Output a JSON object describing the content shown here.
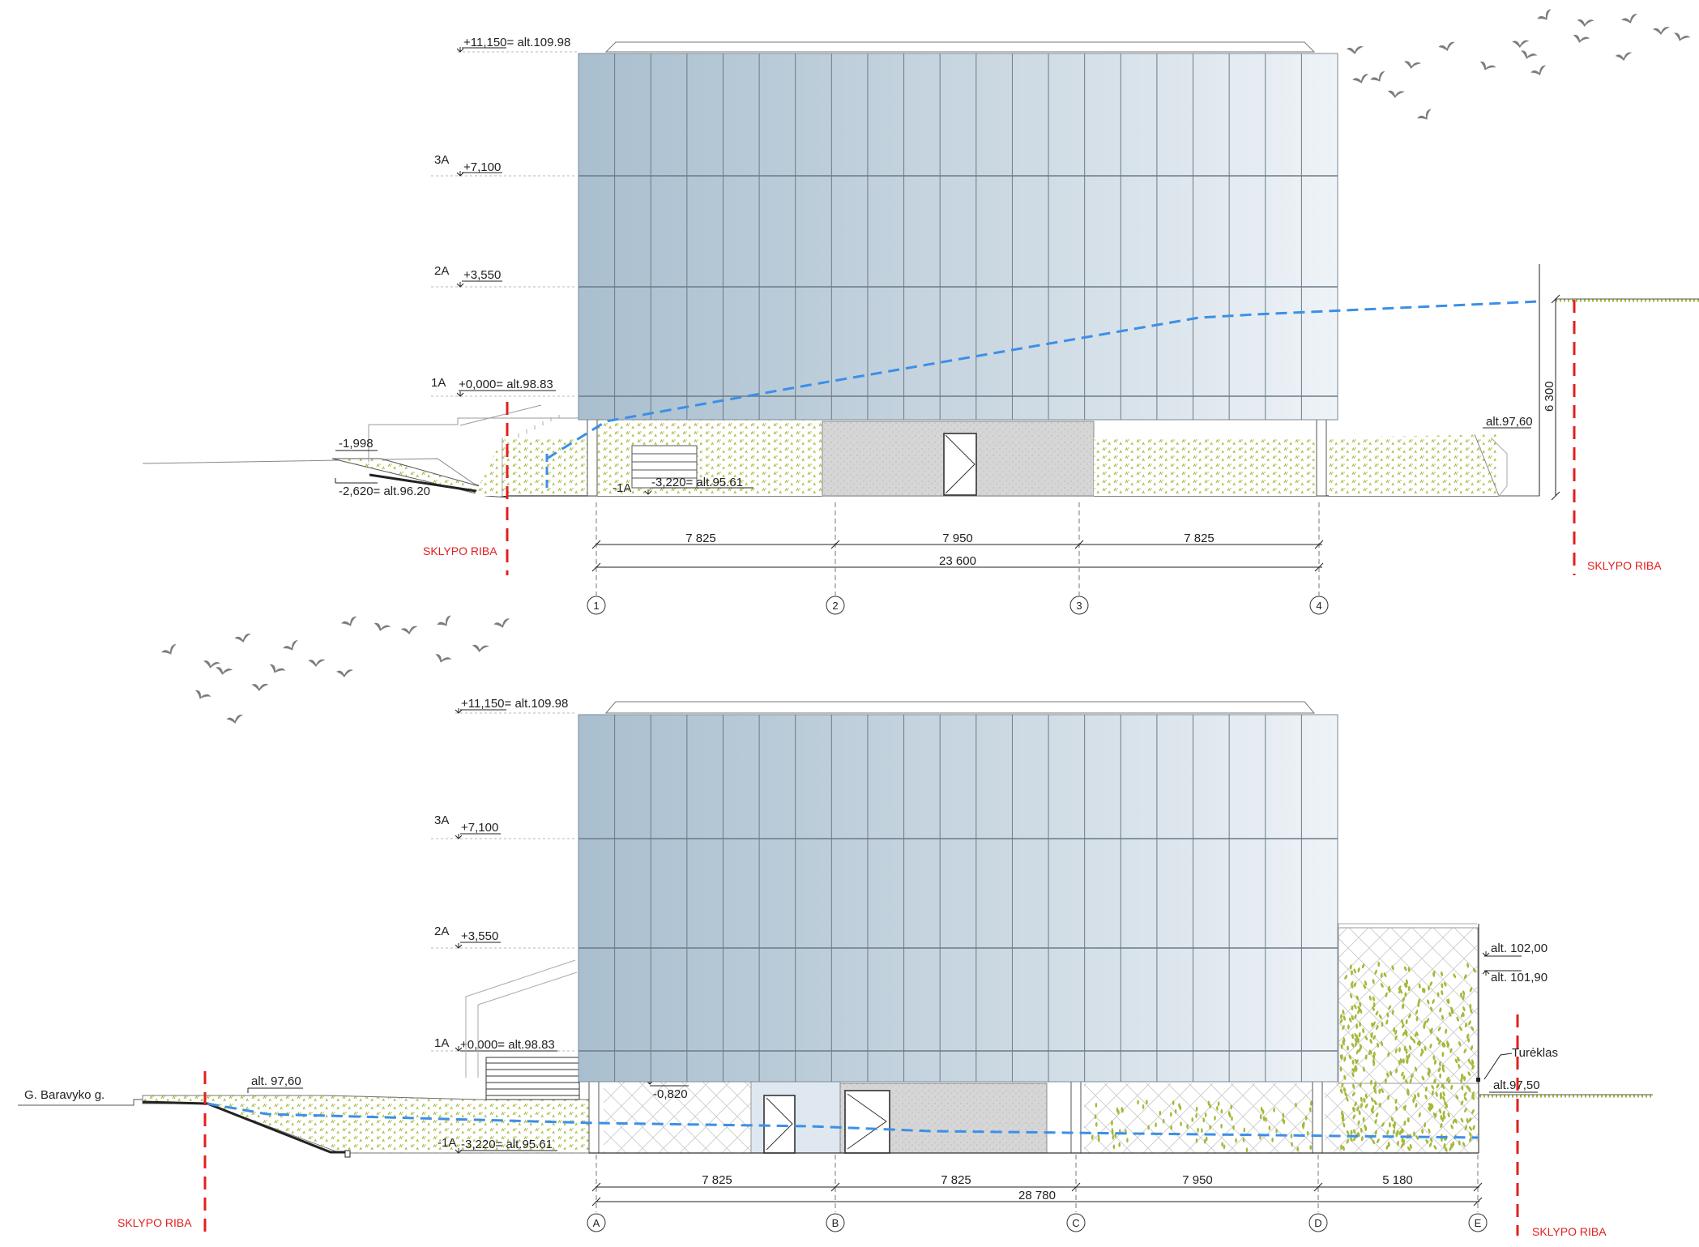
{
  "top": {
    "levels": [
      {
        "tag": "",
        "text": "+11,150= alt.109.98"
      },
      {
        "tag": "3A",
        "text": "+7,100"
      },
      {
        "tag": "2A",
        "text": "+3,550"
      },
      {
        "tag": "1A",
        "text": "+0,000= alt.98.83"
      }
    ],
    "ground_marks": {
      "m1998": "-1,998",
      "m2620": "-2,620= alt.96.20",
      "basement_tag": "-1A",
      "basement": "-3,220= alt.95.61",
      "right_alt": "alt.97,60",
      "height_dim": "6 300"
    },
    "bays": [
      "7 825",
      "7 950",
      "7 825"
    ],
    "total": "23 600",
    "axes": [
      "1",
      "2",
      "3",
      "4"
    ],
    "plot_boundary_left": "SKLYPO RIBA",
    "plot_boundary_right": "SKLYPO RIBA"
  },
  "bottom": {
    "levels": [
      {
        "tag": "",
        "text": "+11,150= alt.109.98"
      },
      {
        "tag": "3A",
        "text": "+7,100"
      },
      {
        "tag": "2A",
        "text": "+3,550"
      },
      {
        "tag": "1A",
        "text": "+0,000= alt.98.83"
      }
    ],
    "ground_marks": {
      "street": "G. Baravyko g.",
      "left_alt": "alt. 97,60",
      "m0820": "-0,820",
      "basement_tag": "-1A",
      "basement": "-3,220= alt.95.61",
      "alt102": "alt. 102,00",
      "alt101": "alt. 101,90",
      "railing": "Turėklas",
      "right_alt": "alt.97,50"
    },
    "bays": [
      "7 825",
      "7 825",
      "7 950",
      "5 180"
    ],
    "total": "28 780",
    "axes": [
      "A",
      "B",
      "C",
      "D",
      "E"
    ],
    "plot_boundary_left": "SKLYPO RIBA",
    "plot_boundary_right": "SKLYPO RIBA"
  },
  "colors": {
    "glass_dark": "#a9bfcf",
    "glass_light": "#eef3f7",
    "grass": "#a6b83a",
    "groundwater": "#3d8fe6",
    "boundary": "#e0201e"
  }
}
